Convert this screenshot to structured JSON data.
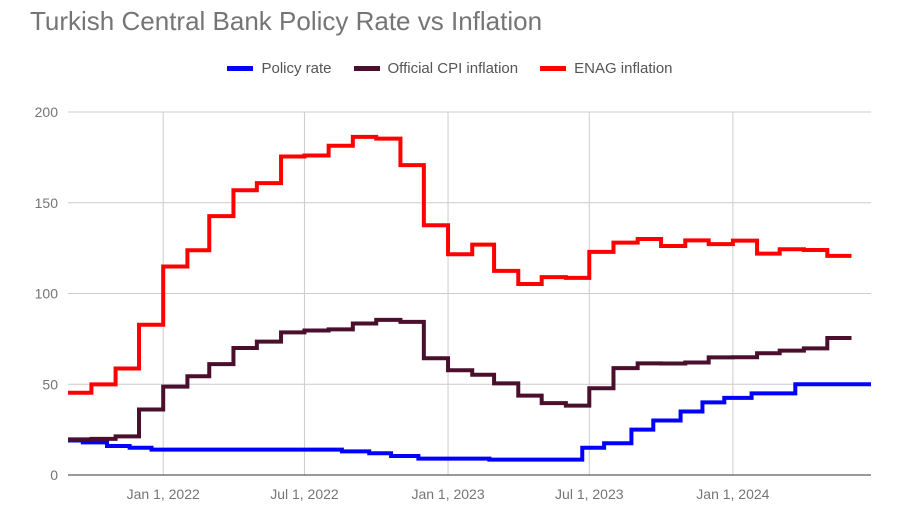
{
  "chart_data": {
    "type": "line",
    "step": true,
    "title": "Turkish Central Bank Policy Rate vs Inflation",
    "xlabel": "",
    "ylabel": "",
    "ylim": [
      0,
      200
    ],
    "xlim": [
      "2021-09-01",
      "2024-06-26"
    ],
    "yticks": [
      "0",
      "50",
      "100",
      "150",
      "200"
    ],
    "xticks": [
      {
        "date": "2022-01-01",
        "label": "Jan 1, 2022"
      },
      {
        "date": "2022-07-01",
        "label": "Jul 1, 2022"
      },
      {
        "date": "2023-01-01",
        "label": "Jan 1, 2023"
      },
      {
        "date": "2023-07-01",
        "label": "Jul 1, 2023"
      },
      {
        "date": "2024-01-01",
        "label": "Jan 1, 2024"
      }
    ],
    "grid": true,
    "legend_position": "top",
    "series": [
      {
        "name": "Policy rate",
        "color": "#0000ff",
        "x": [
          "2021-09-01",
          "2021-09-20",
          "2021-10-21",
          "2021-11-19",
          "2021-12-17",
          "2022-08-18",
          "2022-09-22",
          "2022-10-20",
          "2022-11-24",
          "2023-02-23",
          "2023-06-22",
          "2023-07-20",
          "2023-08-24",
          "2023-09-21",
          "2023-10-26",
          "2023-11-23",
          "2023-12-21",
          "2024-01-25",
          "2024-03-21",
          "2024-06-26"
        ],
        "values": [
          19,
          18,
          16,
          15,
          14,
          13,
          12,
          10.5,
          9,
          8.5,
          15,
          17.5,
          25,
          30,
          35,
          40,
          42.5,
          45,
          50,
          50
        ]
      },
      {
        "name": "Official CPI inflation",
        "color": "#4a0f2c",
        "x": [
          "2021-09-01",
          "2021-10-01",
          "2021-11-01",
          "2021-12-01",
          "2022-01-01",
          "2022-02-01",
          "2022-03-01",
          "2022-04-01",
          "2022-05-01",
          "2022-06-01",
          "2022-07-01",
          "2022-08-01",
          "2022-09-01",
          "2022-10-01",
          "2022-11-01",
          "2022-12-01",
          "2023-01-01",
          "2023-02-01",
          "2023-03-01",
          "2023-04-01",
          "2023-05-01",
          "2023-06-01",
          "2023-07-01",
          "2023-08-01",
          "2023-09-01",
          "2023-10-01",
          "2023-11-01",
          "2023-12-01",
          "2024-01-01",
          "2024-02-01",
          "2024-03-01",
          "2024-04-01",
          "2024-05-01",
          "2024-06-01"
        ],
        "values": [
          19.6,
          19.9,
          21.3,
          36.1,
          48.7,
          54.4,
          61.1,
          70.0,
          73.5,
          78.6,
          79.6,
          80.2,
          83.5,
          85.5,
          84.4,
          64.3,
          57.7,
          55.2,
          50.5,
          43.7,
          39.6,
          38.2,
          47.8,
          58.9,
          61.5,
          61.4,
          62.0,
          64.8,
          64.9,
          67.1,
          68.5,
          69.8,
          75.5,
          75.5
        ]
      },
      {
        "name": "ENAG inflation",
        "color": "#ff0000",
        "x": [
          "2021-09-01",
          "2021-10-01",
          "2021-11-01",
          "2021-12-01",
          "2022-01-01",
          "2022-02-01",
          "2022-03-01",
          "2022-04-01",
          "2022-05-01",
          "2022-06-01",
          "2022-07-01",
          "2022-08-01",
          "2022-09-01",
          "2022-10-01",
          "2022-11-01",
          "2022-12-01",
          "2023-01-01",
          "2023-02-01",
          "2023-03-01",
          "2023-04-01",
          "2023-05-01",
          "2023-06-01",
          "2023-07-01",
          "2023-08-01",
          "2023-09-01",
          "2023-10-01",
          "2023-11-01",
          "2023-12-01",
          "2024-01-01",
          "2024-02-01",
          "2024-03-01",
          "2024-04-01",
          "2024-05-01",
          "2024-06-01"
        ],
        "values": [
          45.3,
          49.9,
          58.7,
          82.8,
          114.9,
          123.8,
          142.6,
          156.9,
          160.8,
          175.5,
          176.0,
          181.4,
          186.3,
          185.3,
          170.7,
          137.6,
          121.6,
          126.9,
          112.5,
          105.2,
          109.0,
          108.6,
          122.9,
          128.0,
          130.0,
          126.2,
          129.3,
          127.2,
          129.1,
          122.0,
          124.4,
          124.0,
          120.7,
          120.7
        ]
      }
    ]
  }
}
